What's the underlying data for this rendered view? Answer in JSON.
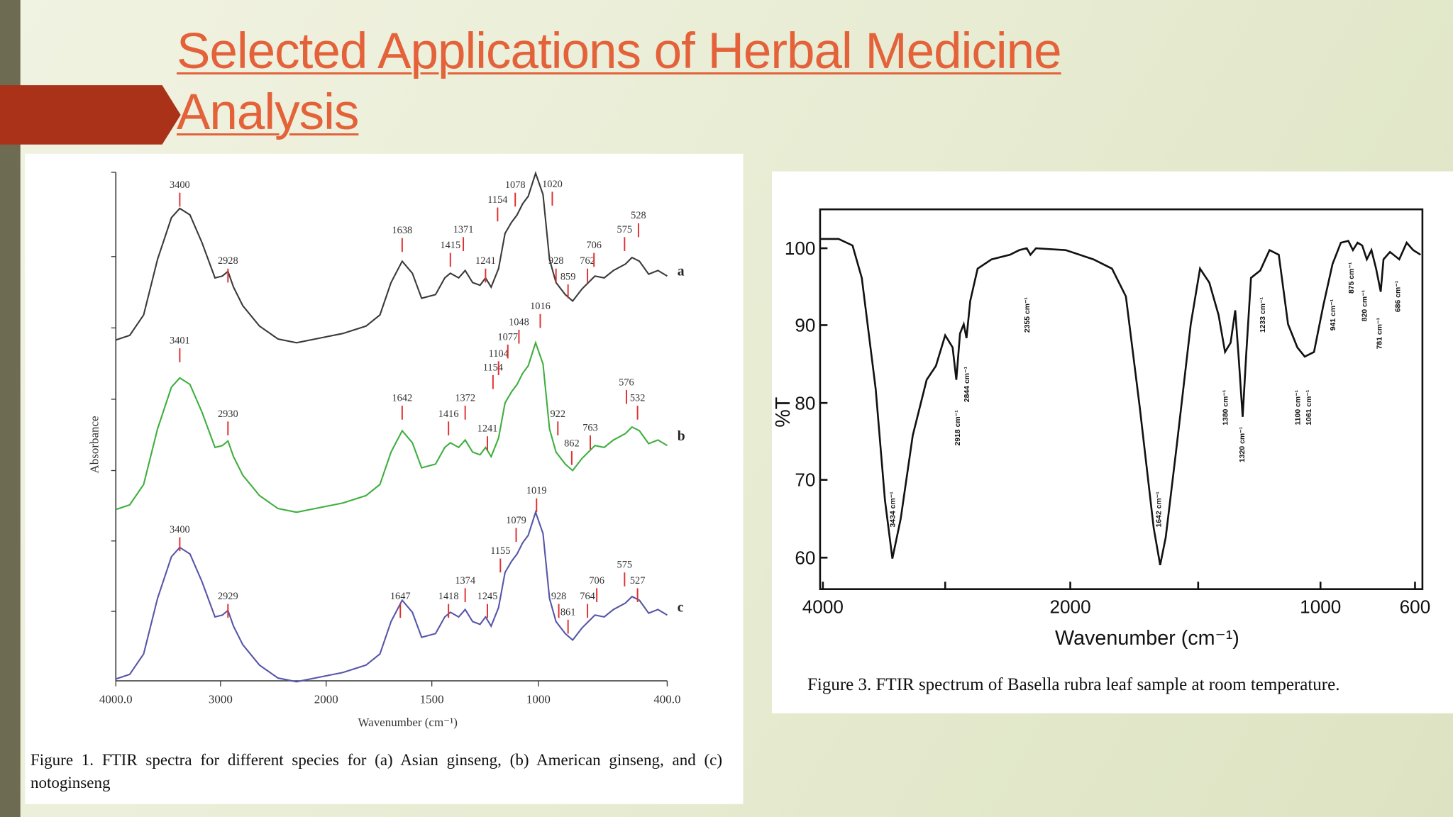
{
  "header": {
    "title": "Selected Applications of Herbal Medicine Analysis"
  },
  "figure1": {
    "y_label": "Absorbance",
    "x_label": "Wavenumber (cm⁻¹)",
    "x_ticks": [
      "4000.0",
      "3000",
      "2000",
      "1500",
      "1000",
      "400.0"
    ],
    "spectra": [
      {
        "name": "a",
        "peaks": [
          "3400",
          "2928",
          "1638",
          "1415",
          "1371",
          "1241",
          "1154",
          "1078",
          "1020",
          "928",
          "859",
          "762",
          "706",
          "575",
          "528"
        ]
      },
      {
        "name": "b",
        "peaks": [
          "3401",
          "2930",
          "1642",
          "1416",
          "1372",
          "1241",
          "1154",
          "1104",
          "1077",
          "1048",
          "1016",
          "922",
          "862",
          "763",
          "576",
          "532"
        ]
      },
      {
        "name": "c",
        "peaks": [
          "3400",
          "2929",
          "1647",
          "1418",
          "1374",
          "1245",
          "1155",
          "1079",
          "1019",
          "928",
          "861",
          "764",
          "706",
          "575",
          "527"
        ]
      }
    ],
    "caption": "Figure 1. FTIR spectra for different species for (a) Asian ginseng, (b) American ginseng, and (c) notoginseng"
  },
  "figure2": {
    "y_label": "%T",
    "x_label": "Wavenumber (cm⁻¹)",
    "y_ticks": [
      "100",
      "90",
      "80",
      "70",
      "60"
    ],
    "x_ticks": [
      "4000",
      "2000",
      "1000",
      "600"
    ],
    "peaks": [
      "3434 cm⁻¹",
      "2918 cm⁻¹",
      "2844 cm⁻¹",
      "2355 cm⁻¹",
      "1642 cm⁻¹",
      "1380 cm⁻¹",
      "1320 cm⁻¹",
      "1233 cm⁻¹",
      "1100 cm⁻¹",
      "1061 cm⁻¹",
      "941 cm⁻¹",
      "875 cm⁻¹",
      "820 cm⁻¹",
      "781 cm⁻¹",
      "686 cm⁻¹"
    ],
    "caption": "Figure 3.  FTIR spectrum of Basella rubra leaf sample at room temperature."
  }
}
